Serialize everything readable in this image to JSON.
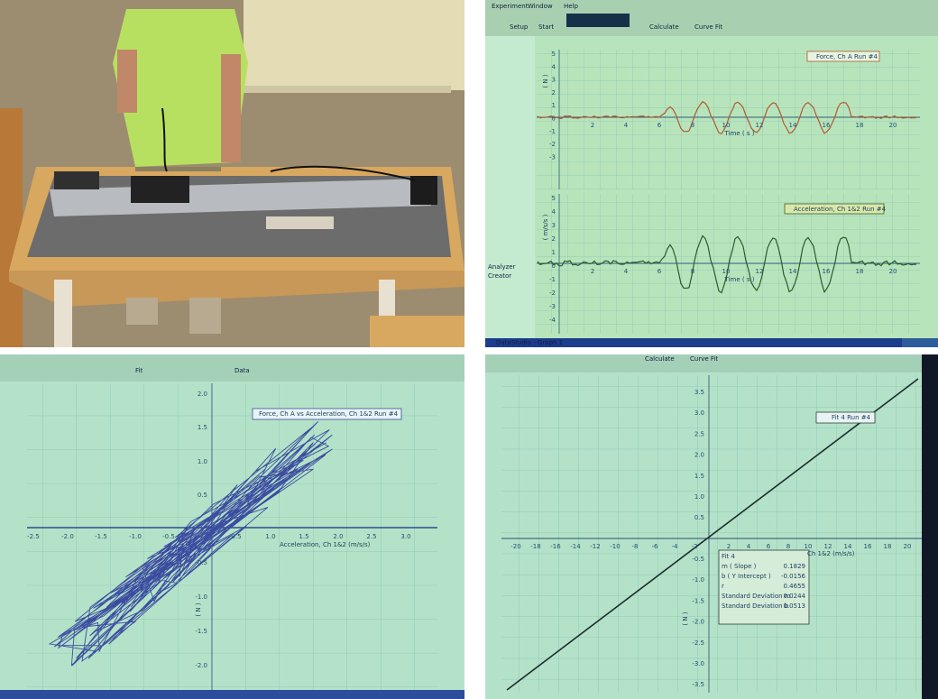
{
  "top_right_screen": {
    "menu": [
      "Experiment",
      "Window",
      "Help"
    ],
    "toolbar": [
      "Setup",
      "Start",
      "Calculate",
      "Curve Fit"
    ],
    "sidebar": [
      "Analyzer",
      "Creator"
    ],
    "taskbar": "DataStudio - Graph 1",
    "force_graph": {
      "legend": "Force, Ch A Run #4",
      "y_label": "( N )",
      "x_label": "Time ( s )",
      "x_ticks": [
        "2",
        "4",
        "6",
        "8",
        "10",
        "12",
        "14",
        "16",
        "18",
        "20"
      ],
      "y_ticks": [
        "5",
        "4",
        "3",
        "2",
        "1",
        "0",
        "-1",
        "-2",
        "-3"
      ]
    },
    "acceleration_graph": {
      "legend": "Acceleration, Ch 1&2 Run #4",
      "y_label": "( m/s/s )",
      "x_label": "Time ( s )",
      "x_ticks": [
        "2",
        "4",
        "6",
        "8",
        "10",
        "12",
        "14",
        "16",
        "18",
        "20"
      ],
      "y_ticks": [
        "5",
        "4",
        "3",
        "2",
        "1",
        "0",
        "-1",
        "-2",
        "-3",
        "-4"
      ]
    }
  },
  "bottom_left_screen": {
    "toolbar": [
      "Fit",
      "Data"
    ],
    "legend": "Force, Ch A vs Acceleration, Ch 1&2 Run #4",
    "x_label": "Acceleration, Ch 1&2 (m/s/s)",
    "y_label": "( N )",
    "x_ticks": [
      "-2.5",
      "-2.0",
      "-1.5",
      "-1.0",
      "-0.5",
      "0.5",
      "1.0",
      "1.5",
      "2.0",
      "2.5",
      "3.0"
    ],
    "y_ticks": [
      "2.0",
      "1.5",
      "1.0",
      "0.5",
      "-0.5",
      "-1.0",
      "-1.5",
      "-2.0"
    ]
  },
  "bottom_right_screen": {
    "toolbar": [
      "Calculate",
      "Curve Fit"
    ],
    "legend": "Fit 4 Run #4",
    "x_label": "Ch 1&2 (m/s/s)",
    "y_label": "( N )",
    "x_ticks": [
      "-20",
      "-18",
      "-16",
      "-14",
      "-12",
      "-10",
      "-8",
      "-6",
      "-4",
      "-2",
      "2",
      "4",
      "6",
      "8",
      "10",
      "12",
      "14",
      "16",
      "18",
      "20"
    ],
    "y_ticks": [
      "3.5",
      "3.0",
      "2.5",
      "2.0",
      "1.5",
      "1.0",
      "0.5",
      "-0.5",
      "-1.0",
      "-1.5",
      "-2.0",
      "-2.5",
      "-3.0",
      "-3.5"
    ],
    "fit_box": {
      "title": "Fit 4",
      "rows": [
        [
          "m ( Slope )",
          "0.1829"
        ],
        [
          "b ( Y Intercept )",
          "-0.0156"
        ],
        [
          "r",
          "0.4655"
        ],
        [
          "Standard Deviation m",
          "0.0244"
        ],
        [
          "Standard Deviation b",
          "0.0513"
        ]
      ]
    }
  }
}
